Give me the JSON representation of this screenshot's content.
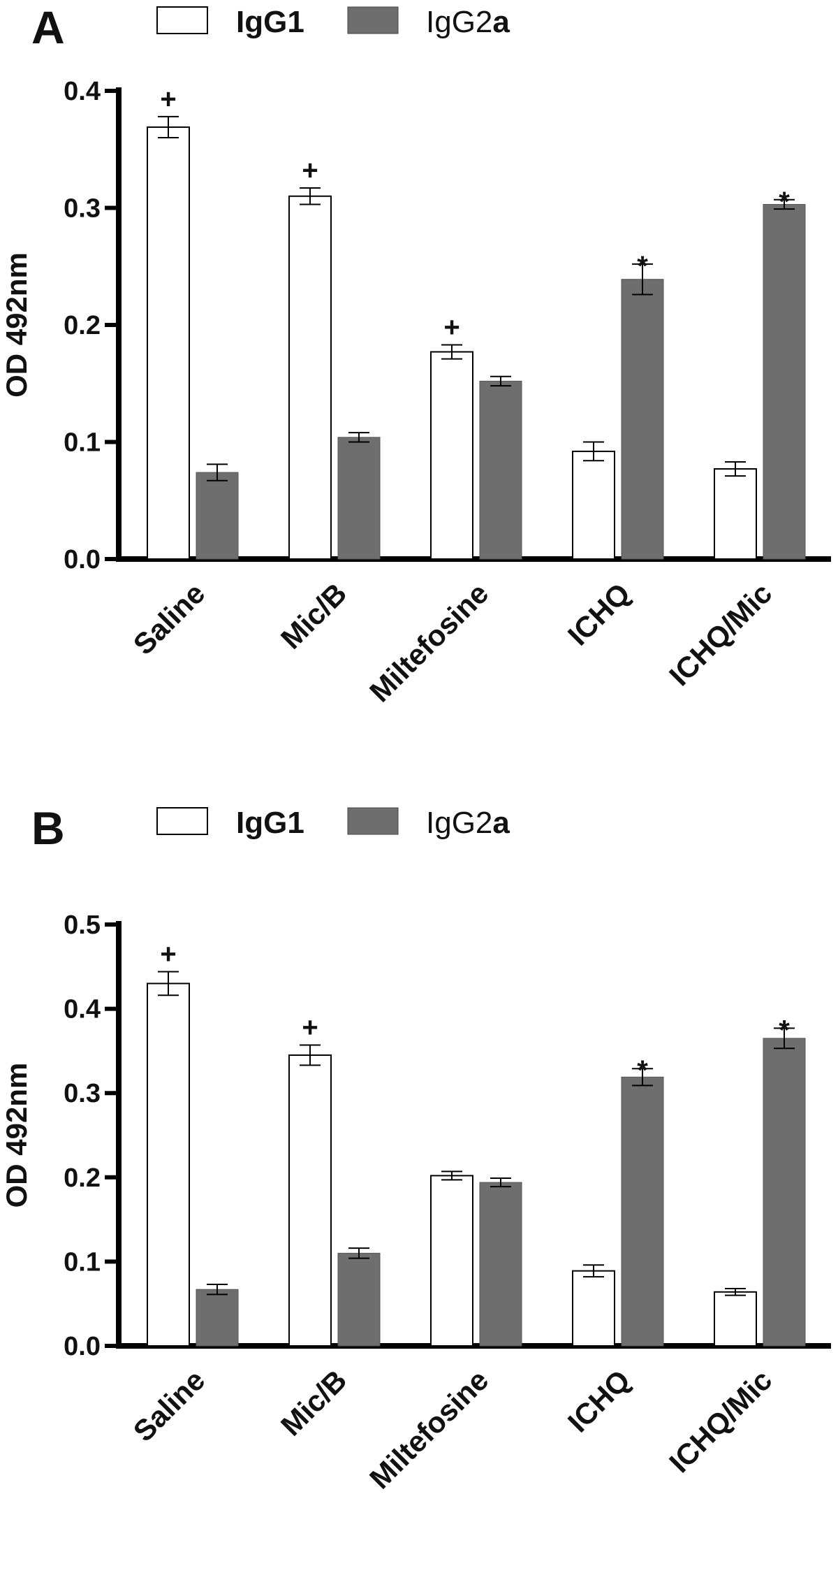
{
  "colors": {
    "igg1": "#ffffff",
    "igg2a": "#6e6e6e",
    "axis": "#000000"
  },
  "chart_data": [
    {
      "type": "bar",
      "panel": "A",
      "legend": {
        "placement": "top",
        "igg1": "IgG1",
        "igg2a_prefix": "IgG2",
        "igg2a_suffix": "a"
      },
      "categories": [
        "Saline",
        "Mic/B",
        "Miltefosine",
        "ICHQ",
        "ICHQ/Mic"
      ],
      "ylabel": "OD 492nm",
      "ylim": [
        0,
        0.4
      ],
      "yticks": [
        "0.0",
        "0.1",
        "0.2",
        "0.3",
        "0.4"
      ],
      "grid": false,
      "series": [
        {
          "name": "IgG1",
          "values": [
            0.369,
            0.31,
            0.177,
            0.092,
            0.077
          ],
          "errors": [
            0.009,
            0.007,
            0.006,
            0.008,
            0.006
          ],
          "marks": [
            "+",
            "+",
            "+",
            "",
            ""
          ]
        },
        {
          "name": "IgG2a",
          "values": [
            0.074,
            0.104,
            0.152,
            0.239,
            0.303
          ],
          "errors": [
            0.007,
            0.004,
            0.004,
            0.013,
            0.004
          ],
          "marks": [
            "",
            "",
            "",
            "*",
            "*"
          ]
        }
      ]
    },
    {
      "type": "bar",
      "panel": "B",
      "legend": {
        "placement": "top",
        "igg1": "IgG1",
        "igg2a_prefix": "IgG2",
        "igg2a_suffix": "a"
      },
      "categories": [
        "Saline",
        "Mic/B",
        "Miltefosine",
        "ICHQ",
        "ICHQ/Mic"
      ],
      "ylabel": "OD 492nm",
      "ylim": [
        0,
        0.5
      ],
      "yticks": [
        "0.0",
        "0.1",
        "0.2",
        "0.3",
        "0.4",
        "0.5"
      ],
      "grid": false,
      "series": [
        {
          "name": "IgG1",
          "values": [
            0.43,
            0.345,
            0.202,
            0.089,
            0.064
          ],
          "errors": [
            0.014,
            0.012,
            0.005,
            0.007,
            0.004
          ],
          "marks": [
            "+",
            "+",
            "",
            "",
            ""
          ]
        },
        {
          "name": "IgG2a",
          "values": [
            0.067,
            0.11,
            0.194,
            0.319,
            0.365
          ],
          "errors": [
            0.006,
            0.006,
            0.005,
            0.01,
            0.012
          ],
          "marks": [
            "",
            "",
            "",
            "*",
            "*"
          ]
        }
      ]
    }
  ]
}
